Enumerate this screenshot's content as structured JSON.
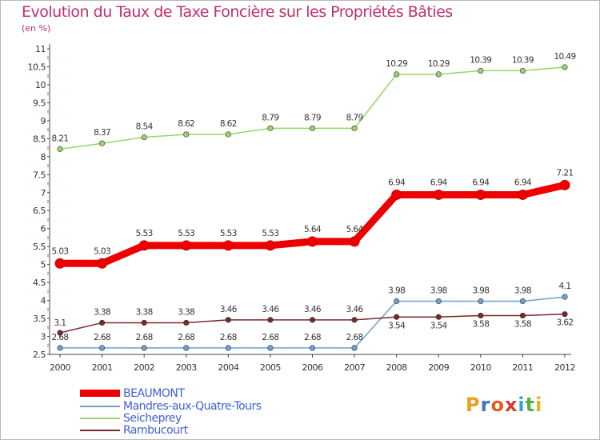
{
  "title": "Evolution du Taux de Taxe Foncière sur les Propriétés Bâties",
  "unit_label": "(en %)",
  "logo_text": "Proxiti",
  "colors": {
    "title": "#c0306a",
    "axis": "#444444",
    "grid_mark": "#e05080",
    "legend_text": "#4060d8"
  },
  "chart_data": {
    "type": "line",
    "title": "Evolution du Taux de Taxe Foncière sur les Propriétés Bâties",
    "ylabel": "(en %)",
    "xlabel": "",
    "ylim": [
      2.5,
      11
    ],
    "y_ticks": [
      "2.5",
      "3",
      "3.5",
      "4",
      "4.5",
      "5",
      "5.5",
      "6",
      "6.5",
      "7",
      "7.5",
      "8",
      "8.5",
      "9",
      "9.5",
      "10",
      "10.5",
      "11"
    ],
    "x": [
      "2000",
      "2001",
      "2002",
      "2003",
      "2004",
      "2005",
      "2006",
      "2007",
      "2008",
      "2009",
      "2010",
      "2011",
      "2012"
    ],
    "series": [
      {
        "name": "BEAUMONT",
        "color": "#ee0000",
        "values": [
          5.03,
          5.03,
          5.53,
          5.53,
          5.53,
          5.53,
          5.64,
          5.64,
          6.94,
          6.94,
          6.94,
          6.94,
          7.21
        ],
        "labels": [
          "5.03",
          "5.03",
          "5.53",
          "5.53",
          "5.53",
          "5.53",
          "5.64",
          "5.64",
          "6.94",
          "6.94",
          "6.94",
          "6.94",
          "7.21"
        ]
      },
      {
        "name": "Mandres-aux-Quatre-Tours",
        "color": "#6fa0cf",
        "values": [
          2.68,
          2.68,
          2.68,
          2.68,
          2.68,
          2.68,
          2.68,
          2.68,
          3.98,
          3.98,
          3.98,
          3.98,
          4.1
        ],
        "labels": [
          "2.68",
          "2.68",
          "2.68",
          "2.68",
          "2.68",
          "2.68",
          "2.68",
          "2.68",
          "3.98",
          "3.98",
          "3.98",
          "3.98",
          "4.1"
        ]
      },
      {
        "name": "Seicheprey",
        "color": "#99d36a",
        "values": [
          8.21,
          8.37,
          8.54,
          8.62,
          8.62,
          8.79,
          8.79,
          8.79,
          10.29,
          10.29,
          10.39,
          10.39,
          10.49
        ],
        "labels": [
          "8.21",
          "8.37",
          "8.54",
          "8.62",
          "8.62",
          "8.79",
          "8.79",
          "8.79",
          "10.29",
          "10.29",
          "10.39",
          "10.39",
          "10.49"
        ]
      },
      {
        "name": "Rambucourt",
        "color": "#7a2828",
        "values": [
          3.1,
          3.38,
          3.38,
          3.38,
          3.46,
          3.46,
          3.46,
          3.46,
          3.54,
          3.54,
          3.58,
          3.58,
          3.62
        ],
        "labels": [
          "3.1",
          "3.38",
          "3.38",
          "3.38",
          "3.46",
          "3.46",
          "3.46",
          "3.46",
          "3.54",
          "3.54",
          "3.58",
          "3.58",
          "3.62"
        ]
      }
    ],
    "legend_position": "bottom-left"
  }
}
